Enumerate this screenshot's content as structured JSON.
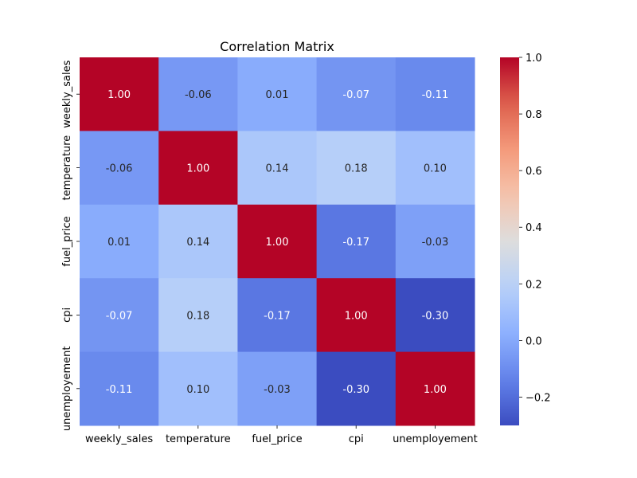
{
  "chart_data": {
    "type": "heatmap",
    "title": "Correlation Matrix",
    "xlabel": "",
    "ylabel": "",
    "x_categories": [
      "weekly_sales",
      "temperature",
      "fuel_price",
      "cpi",
      "unemployement"
    ],
    "y_categories": [
      "weekly_sales",
      "temperature",
      "fuel_price",
      "cpi",
      "unemployement"
    ],
    "values": [
      [
        1.0,
        -0.06,
        0.01,
        -0.07,
        -0.11
      ],
      [
        -0.06,
        1.0,
        0.14,
        0.18,
        0.1
      ],
      [
        0.01,
        0.14,
        1.0,
        -0.17,
        -0.03
      ],
      [
        -0.07,
        0.18,
        -0.17,
        1.0,
        -0.3
      ],
      [
        -0.11,
        0.1,
        -0.03,
        -0.3,
        1.0
      ]
    ],
    "value_format": "0.00",
    "colormap": "coolwarm",
    "color_range": [
      -0.3,
      1.0
    ],
    "colorbar_ticks": [
      "1.0",
      "0.8",
      "0.6",
      "0.4",
      "0.2",
      "0.0",
      "−0.2"
    ],
    "colorbar_tick_values": [
      1.0,
      0.8,
      0.6,
      0.4,
      0.2,
      0.0,
      -0.2
    ],
    "grid": false,
    "colorbar_placement": "right"
  }
}
